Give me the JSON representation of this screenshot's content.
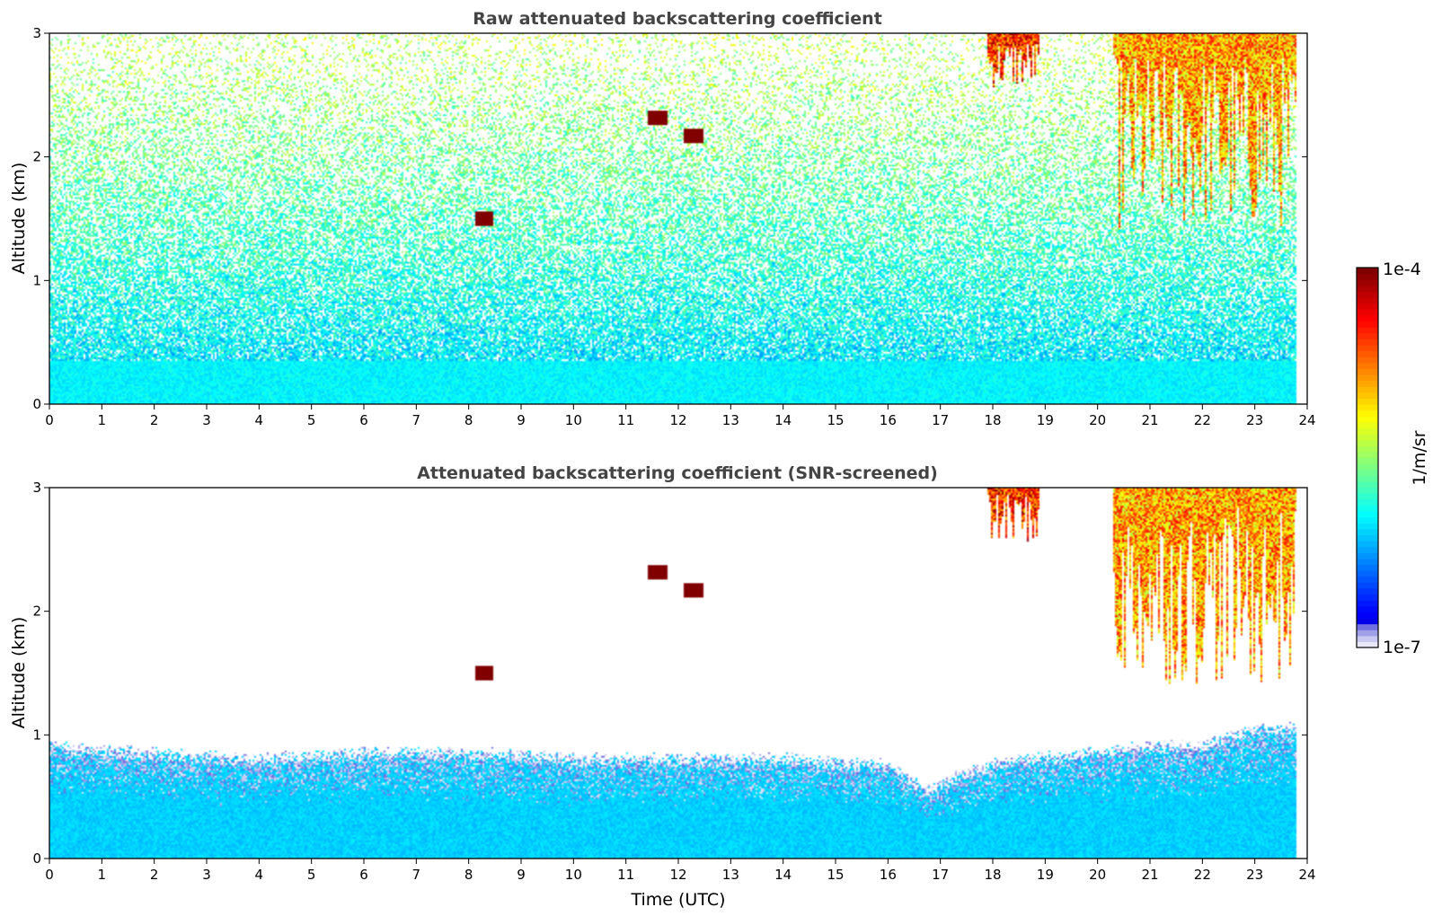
{
  "chart_data": [
    {
      "type": "heatmap",
      "title": "Raw attenuated backscattering coefficient",
      "xlabel": "",
      "ylabel": "Altitude (km)",
      "xlim": [
        0,
        24
      ],
      "ylim": [
        0,
        3
      ],
      "xticks": [
        "0",
        "1",
        "2",
        "3",
        "4",
        "5",
        "6",
        "7",
        "8",
        "9",
        "10",
        "11",
        "12",
        "13",
        "14",
        "15",
        "16",
        "17",
        "18",
        "19",
        "20",
        "21",
        "22",
        "23",
        "24"
      ],
      "yticks": [
        "0",
        "1",
        "2",
        "3"
      ],
      "screened": false,
      "features": [
        {
          "kind": "boundary_layer",
          "x": [
            0,
            23.8
          ],
          "top_km": 0.35
        },
        {
          "kind": "cloud",
          "x": [
            17.9,
            18.9
          ],
          "y": [
            2.55,
            3.0
          ],
          "level": 0.82
        },
        {
          "kind": "cloud",
          "x": [
            20.3,
            23.8
          ],
          "y": [
            1.4,
            3.0
          ],
          "level": 0.7
        },
        {
          "kind": "spot",
          "x": 8.3,
          "y": 1.5,
          "level": 1.0
        },
        {
          "kind": "spot",
          "x": 11.6,
          "y": 2.32,
          "level": 1.0
        },
        {
          "kind": "spot",
          "x": 12.3,
          "y": 2.17,
          "level": 1.0
        }
      ]
    },
    {
      "type": "heatmap",
      "title": "Attenuated backscattering coefficient (SNR-screened)",
      "xlabel": "Time (UTC)",
      "ylabel": "Altitude (km)",
      "xlim": [
        0,
        24
      ],
      "ylim": [
        0,
        3
      ],
      "xticks": [
        "0",
        "1",
        "2",
        "3",
        "4",
        "5",
        "6",
        "7",
        "8",
        "9",
        "10",
        "11",
        "12",
        "13",
        "14",
        "15",
        "16",
        "17",
        "18",
        "19",
        "20",
        "21",
        "22",
        "23",
        "24"
      ],
      "yticks": [
        "0",
        "1",
        "2",
        "3"
      ],
      "screened": true,
      "features": [
        {
          "kind": "boundary_layer_top",
          "times": [
            0,
            2,
            4,
            6,
            8,
            10,
            12,
            14,
            16,
            16.8,
            17.5,
            18.5,
            20,
            21,
            22,
            22.6,
            23,
            23.8
          ],
          "top_km": [
            0.9,
            0.85,
            0.8,
            0.85,
            0.85,
            0.8,
            0.8,
            0.8,
            0.75,
            0.55,
            0.7,
            0.8,
            0.85,
            0.9,
            0.9,
            1.0,
            1.05,
            1.05
          ]
        },
        {
          "kind": "cloud",
          "x": [
            17.9,
            18.9
          ],
          "y": [
            2.55,
            3.0
          ],
          "level": 0.82
        },
        {
          "kind": "cloud",
          "x": [
            20.3,
            23.8
          ],
          "y": [
            1.4,
            3.0
          ],
          "level": 0.7
        },
        {
          "kind": "spot",
          "x": 8.3,
          "y": 1.5,
          "level": 1.0
        },
        {
          "kind": "spot",
          "x": 11.6,
          "y": 2.32,
          "level": 1.0
        },
        {
          "kind": "spot",
          "x": 12.3,
          "y": 2.17,
          "level": 1.0
        }
      ]
    }
  ],
  "colorbar": {
    "min_label": "1e-7",
    "max_label": "1e-4",
    "label": "1/m/sr",
    "scale": "log",
    "colormap": "jet",
    "low_colors": [
      "#e8e8f8",
      "#c8c8f0",
      "#a0a0e8",
      "#7070e0"
    ]
  }
}
